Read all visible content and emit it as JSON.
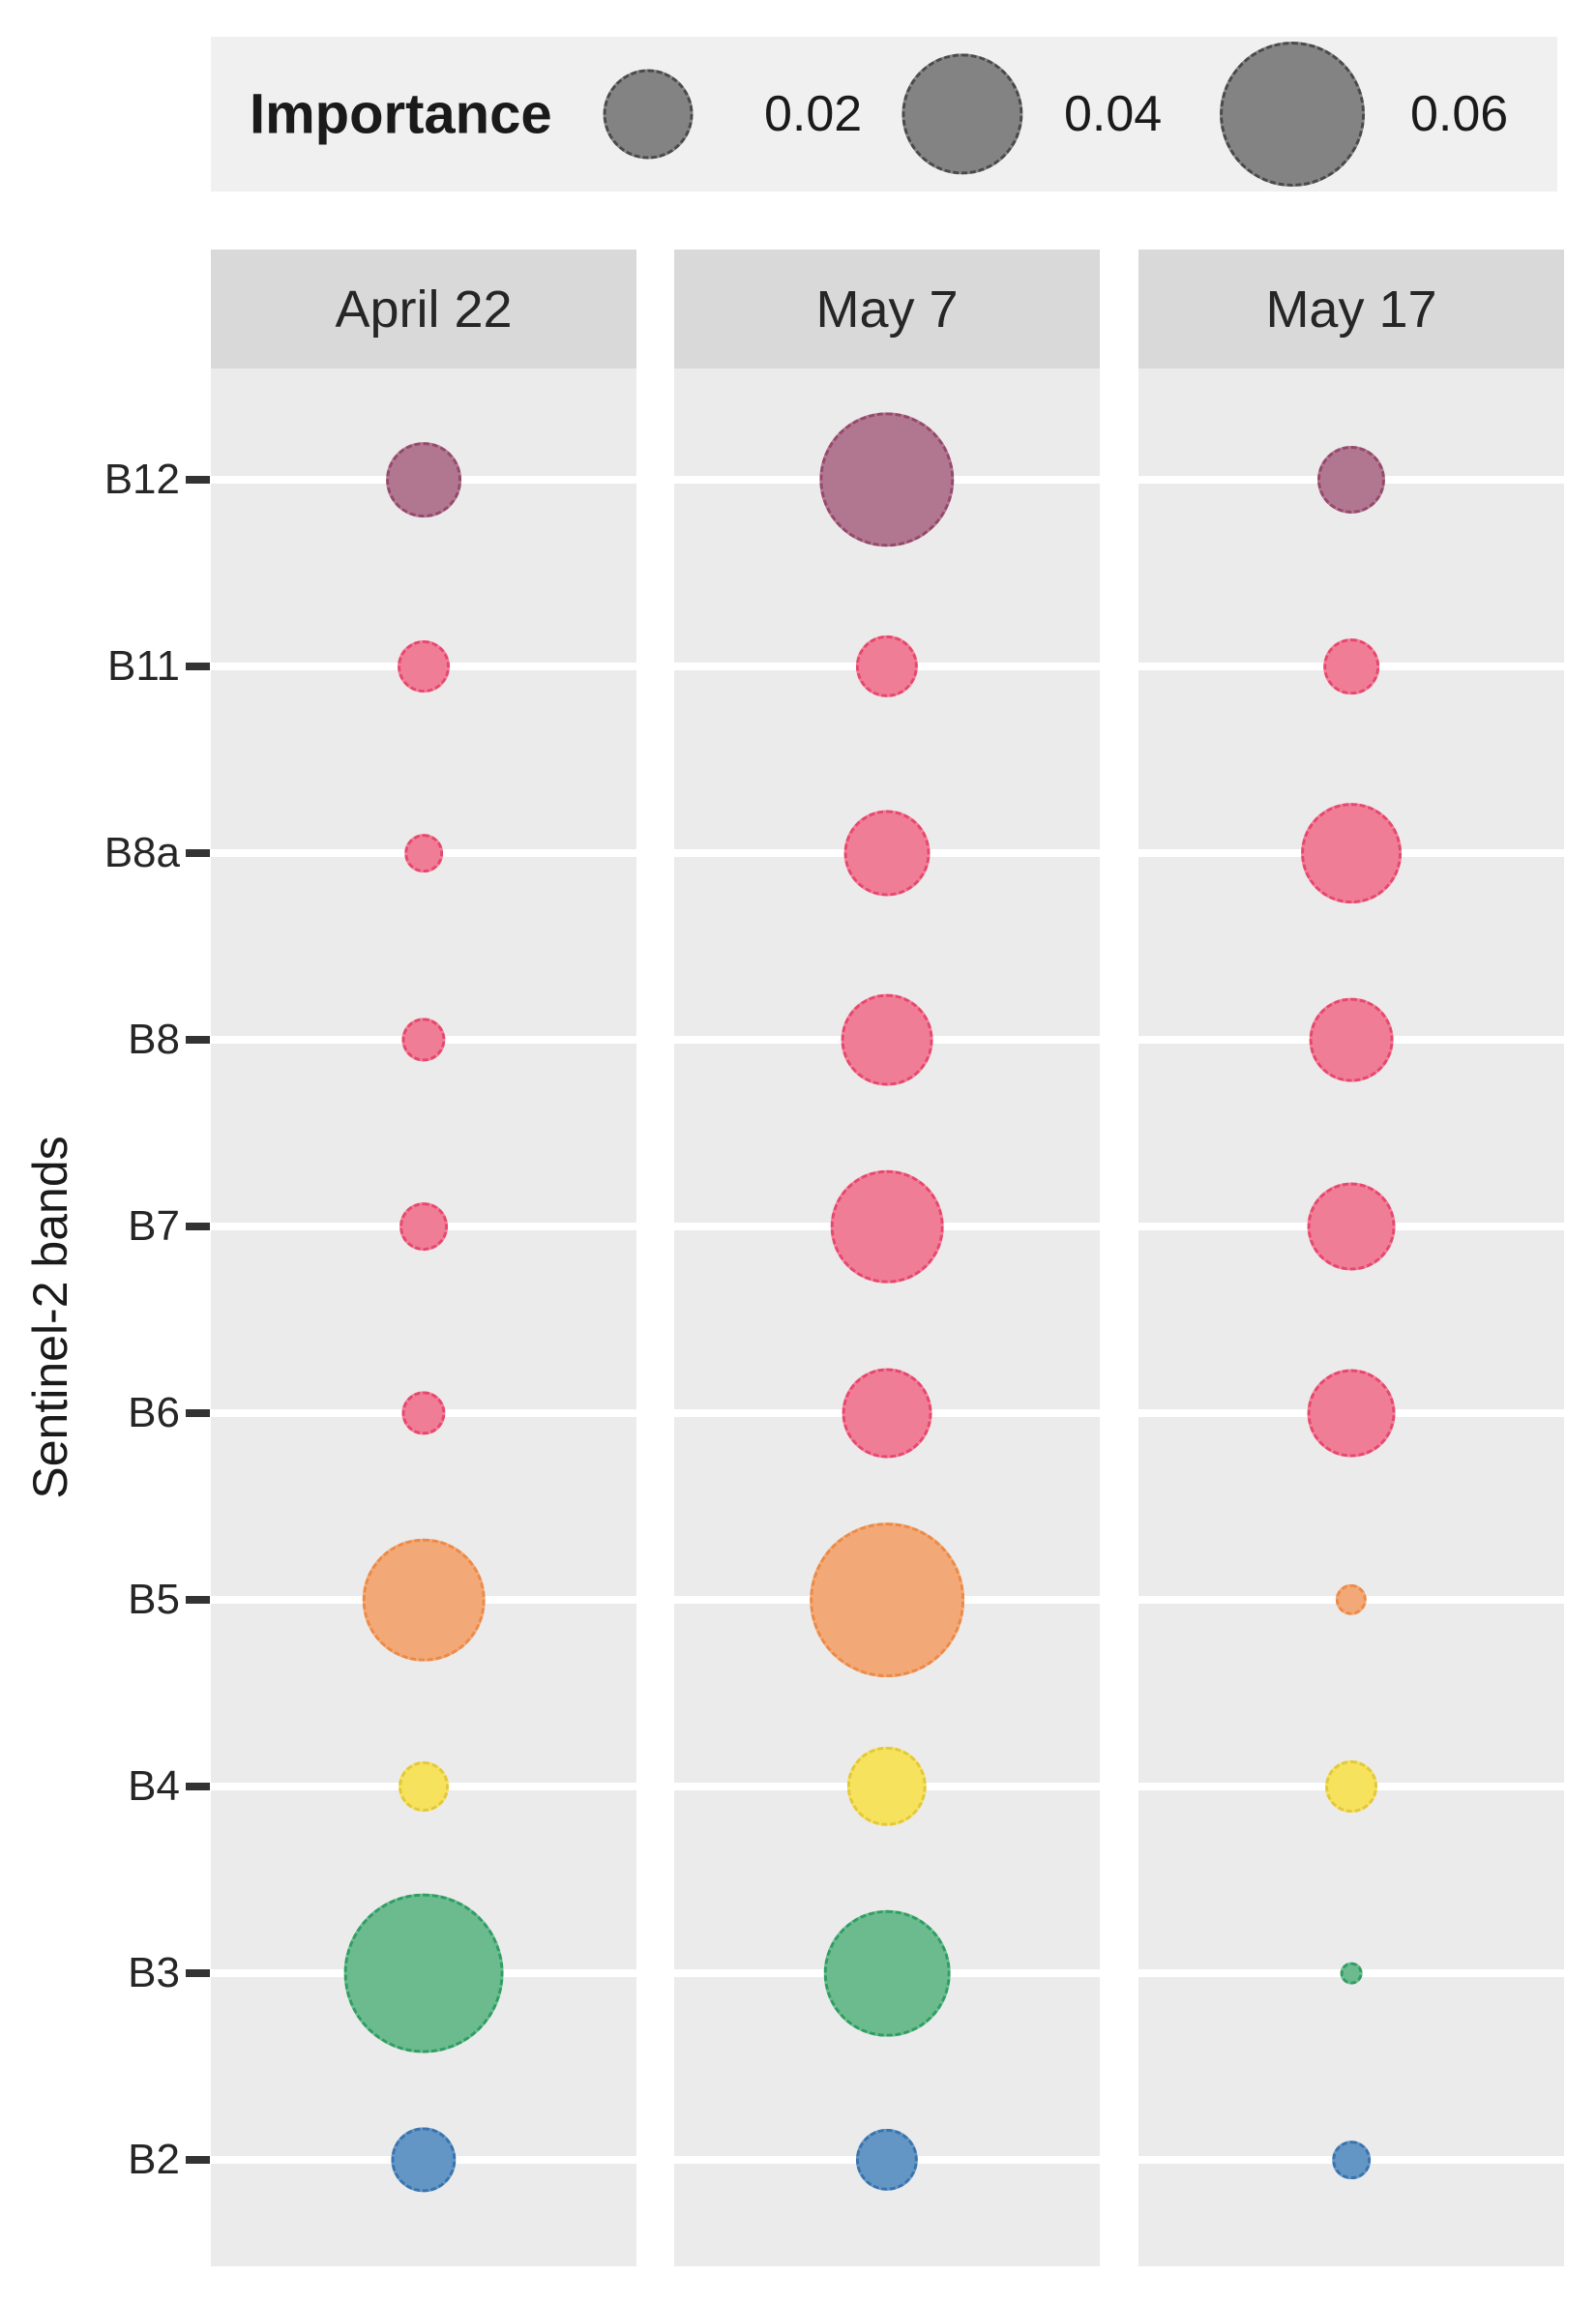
{
  "chart_data": {
    "type": "bubble",
    "title": "",
    "ylabel": "Sentinel-2 bands",
    "xlabel": "",
    "panels": [
      "April 22",
      "May 7",
      "May 17"
    ],
    "bands": [
      "B12",
      "B11",
      "B8a",
      "B8",
      "B7",
      "B6",
      "B5",
      "B4",
      "B3",
      "B2"
    ],
    "series": [
      {
        "name": "April 22",
        "values": [
          0.013,
          0.005,
          0.002,
          0.003,
          0.004,
          0.003,
          0.041,
          0.0045,
          0.074,
          0.009
        ]
      },
      {
        "name": "May 7",
        "values": [
          0.051,
          0.008,
          0.018,
          0.021,
          0.034,
          0.02,
          0.069,
          0.015,
          0.044,
          0.008
        ]
      },
      {
        "name": "May 17",
        "values": [
          0.01,
          0.006,
          0.026,
          0.017,
          0.019,
          0.019,
          0.001,
          0.005,
          0.0002,
          0.002
        ]
      }
    ],
    "size_legend": {
      "title": "Importance",
      "values": [
        0.02,
        0.04,
        0.06
      ],
      "labels": [
        "0.02",
        "0.04",
        "0.06"
      ]
    },
    "legend_position": "top",
    "grid": "major-horizontal-only",
    "band_colors": {
      "B12": {
        "fill": "#b17790",
        "stroke": "#96496b"
      },
      "B11": {
        "fill": "#f07d96",
        "stroke": "#e8476d"
      },
      "B8a": {
        "fill": "#f07d96",
        "stroke": "#e8476d"
      },
      "B8": {
        "fill": "#f07d96",
        "stroke": "#e8476d"
      },
      "B7": {
        "fill": "#f07d96",
        "stroke": "#e8476d"
      },
      "B6": {
        "fill": "#f07d96",
        "stroke": "#e8476d"
      },
      "B5": {
        "fill": "#f3a877",
        "stroke": "#ec8a46"
      },
      "B4": {
        "fill": "#f6e25c",
        "stroke": "#e3c83a"
      },
      "B3": {
        "fill": "#6cbb8e",
        "stroke": "#2f9e63"
      },
      "B2": {
        "fill": "#6396c5",
        "stroke": "#3a74ad"
      }
    },
    "legend_circle_color": {
      "fill": "#838383",
      "stroke": "#4a4a4a"
    },
    "background": {
      "panel": "#ebebeb",
      "header": "#d9d9d9",
      "legend": "#f0f0f0",
      "grid": "#ffffff"
    }
  }
}
